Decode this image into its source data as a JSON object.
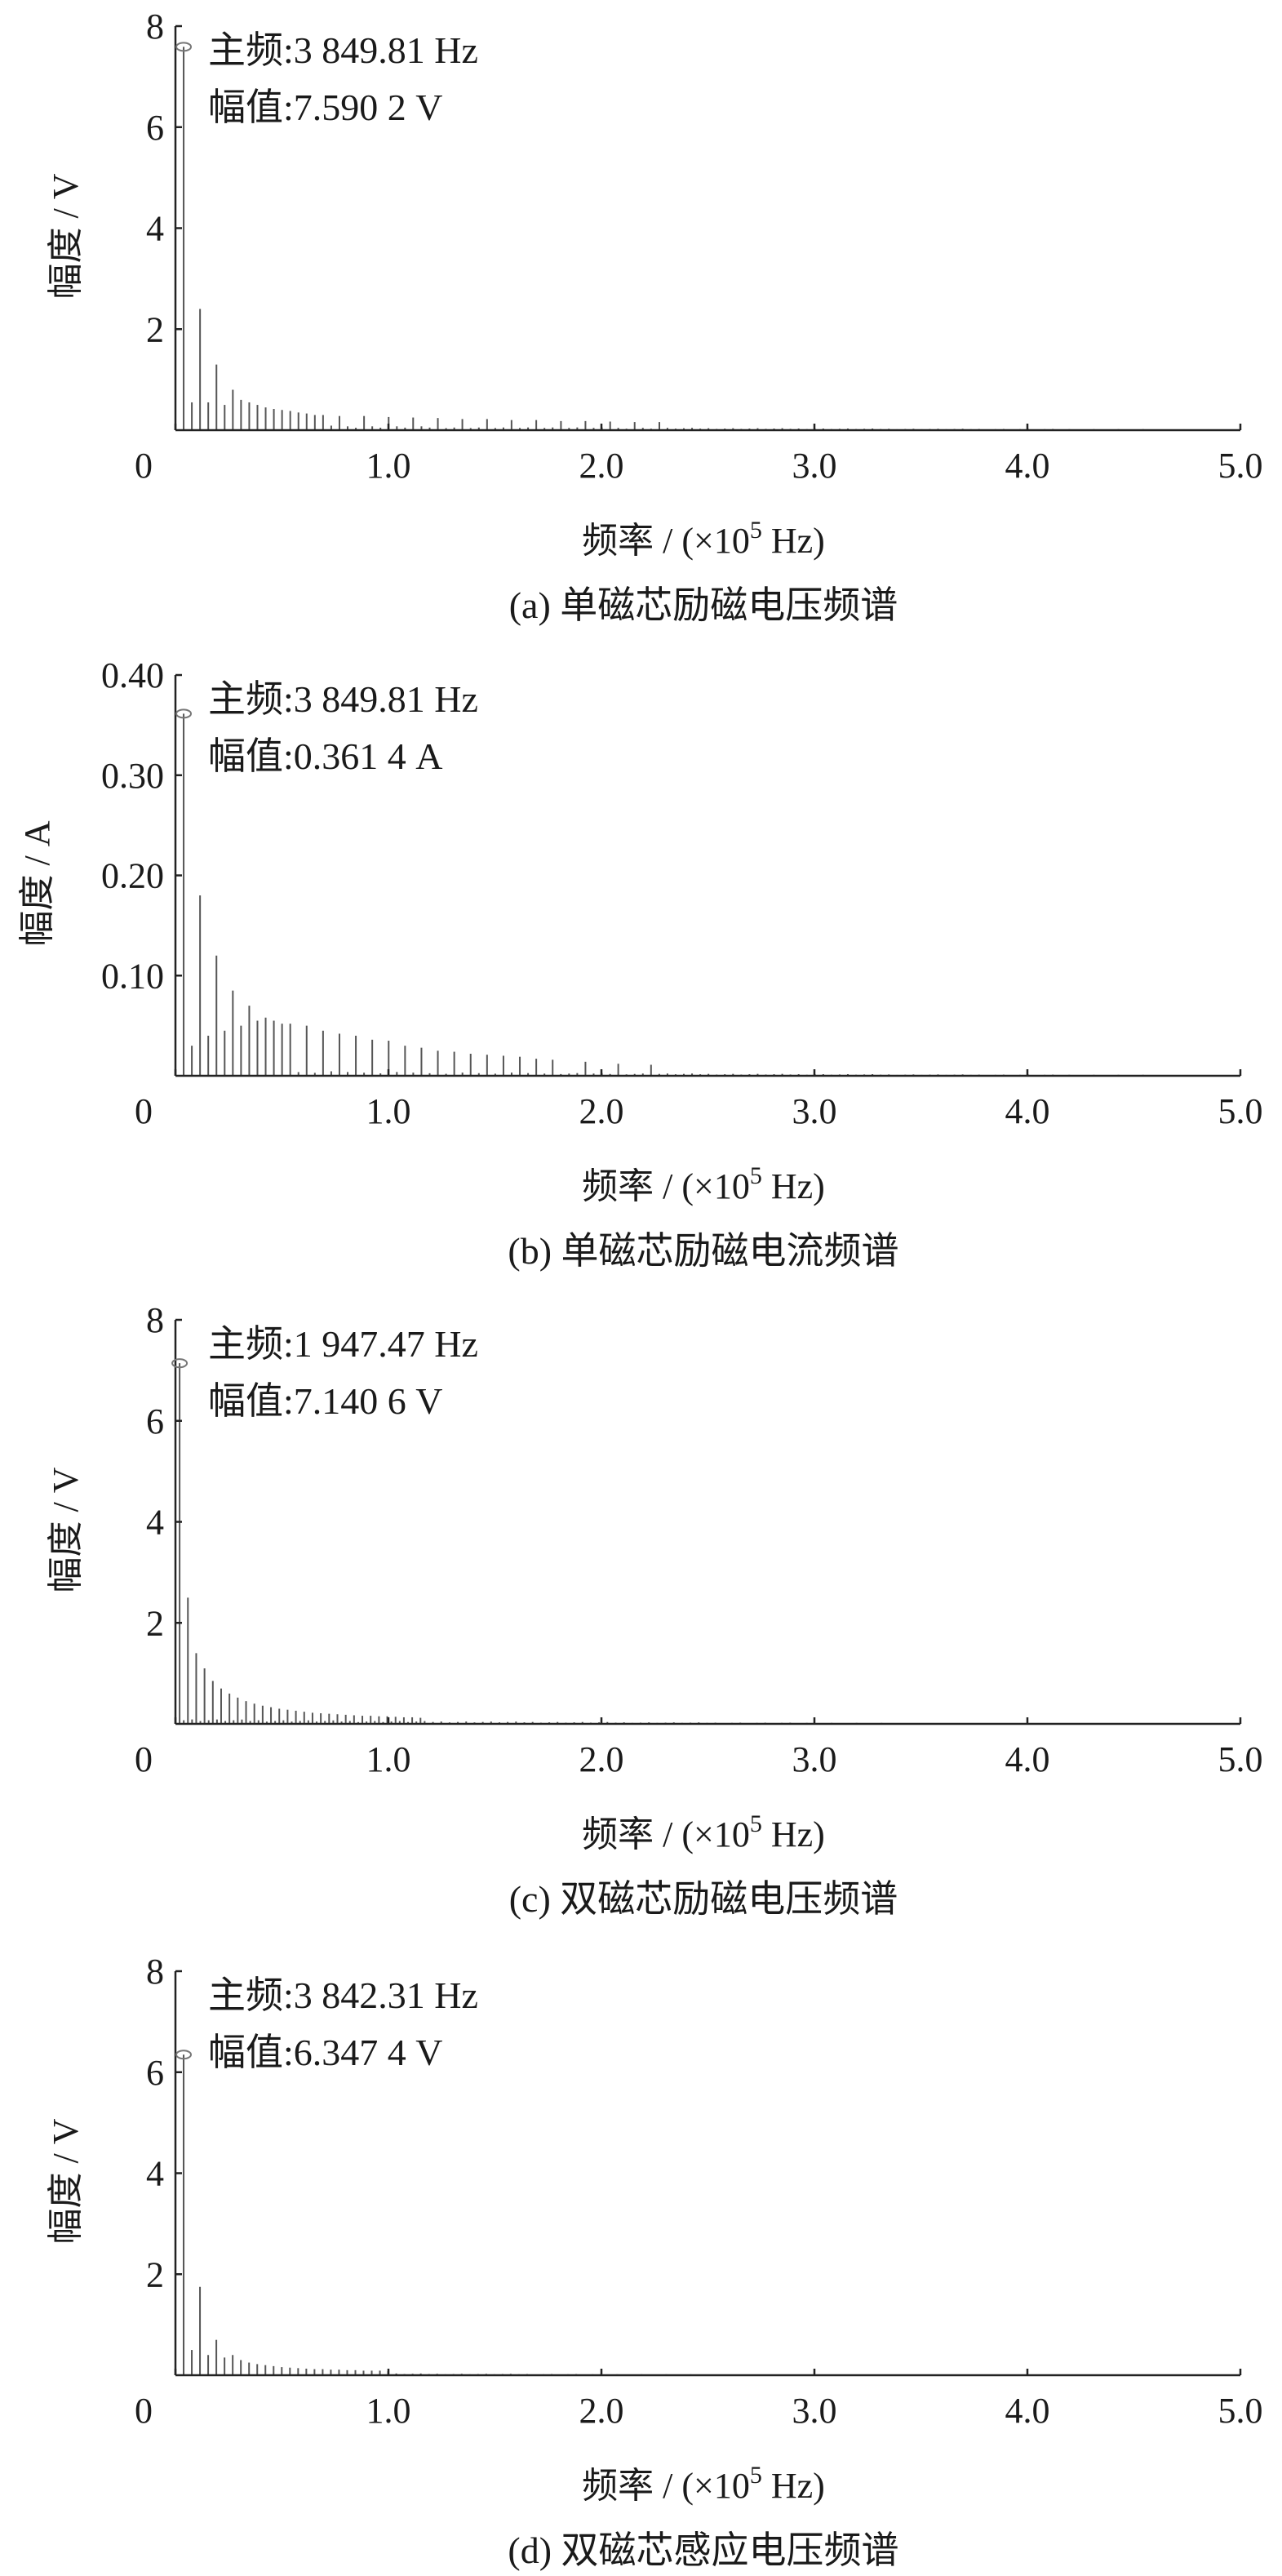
{
  "figure_type": "spectrum-panels",
  "chart_data": [
    {
      "id": "a",
      "type": "bar",
      "caption": "(a) 单磁芯励磁电压频谱",
      "xlabel_prefix": "频率 / (×10",
      "xlabel_exp": "5",
      "xlabel_suffix": " Hz)",
      "ylabel": "幅度 / V",
      "xlim": [
        0,
        5.0
      ],
      "ylim": [
        0,
        8
      ],
      "xticks": [
        "0",
        "1.0",
        "2.0",
        "3.0",
        "4.0",
        "5.0"
      ],
      "xtick_values": [
        0,
        1.0,
        2.0,
        3.0,
        4.0,
        5.0
      ],
      "yticks": [
        "2",
        "4",
        "6",
        "8"
      ],
      "ytick_values": [
        2,
        4,
        6,
        8
      ],
      "grid": false,
      "fundamental_x": 0.0385,
      "annotation_line1": "主频:3 849.81 Hz",
      "annotation_line2": "幅值:7.590 2 V",
      "peaks": [
        {
          "x": 0.0385,
          "y": 7.59
        },
        {
          "x": 0.077,
          "y": 0.55
        },
        {
          "x": 0.1155,
          "y": 2.4
        },
        {
          "x": 0.154,
          "y": 0.55
        },
        {
          "x": 0.1925,
          "y": 1.3
        },
        {
          "x": 0.231,
          "y": 0.5
        },
        {
          "x": 0.2695,
          "y": 0.8
        },
        {
          "x": 0.308,
          "y": 0.6
        },
        {
          "x": 0.3465,
          "y": 0.55
        },
        {
          "x": 0.385,
          "y": 0.5
        },
        {
          "x": 0.4235,
          "y": 0.45
        },
        {
          "x": 0.462,
          "y": 0.42
        },
        {
          "x": 0.5005,
          "y": 0.4
        },
        {
          "x": 0.539,
          "y": 0.38
        },
        {
          "x": 0.5775,
          "y": 0.35
        },
        {
          "x": 0.616,
          "y": 0.33
        },
        {
          "x": 0.6545,
          "y": 0.3
        },
        {
          "x": 0.693,
          "y": 0.3
        },
        {
          "x": 0.77,
          "y": 0.28
        },
        {
          "x": 0.8855,
          "y": 0.28
        },
        {
          "x": 1.001,
          "y": 0.26
        },
        {
          "x": 1.116,
          "y": 0.25
        },
        {
          "x": 1.232,
          "y": 0.24
        },
        {
          "x": 1.347,
          "y": 0.22
        },
        {
          "x": 1.463,
          "y": 0.22
        },
        {
          "x": 1.578,
          "y": 0.2
        },
        {
          "x": 1.694,
          "y": 0.2
        },
        {
          "x": 1.81,
          "y": 0.18
        },
        {
          "x": 1.925,
          "y": 0.18
        },
        {
          "x": 2.041,
          "y": 0.17
        },
        {
          "x": 2.156,
          "y": 0.16
        },
        {
          "x": 2.272,
          "y": 0.16
        }
      ],
      "floor": 0.12,
      "floor_spacing": 0.0385,
      "floor_decay": 2.5
    },
    {
      "id": "b",
      "type": "bar",
      "caption": "(b) 单磁芯励磁电流频谱",
      "xlabel_prefix": "频率 / (×10",
      "xlabel_exp": "5",
      "xlabel_suffix": " Hz)",
      "ylabel": "幅度 / A",
      "xlim": [
        0,
        5.0
      ],
      "ylim": [
        0,
        0.4
      ],
      "xticks": [
        "0",
        "1.0",
        "2.0",
        "3.0",
        "4.0",
        "5.0"
      ],
      "xtick_values": [
        0,
        1.0,
        2.0,
        3.0,
        4.0,
        5.0
      ],
      "yticks": [
        "0.10",
        "0.20",
        "0.30",
        "0.40"
      ],
      "ytick_values": [
        0.1,
        0.2,
        0.3,
        0.4
      ],
      "grid": false,
      "fundamental_x": 0.0385,
      "annotation_line1": "主频:3 849.81 Hz",
      "annotation_line2": "幅值:0.361 4 A",
      "peaks": [
        {
          "x": 0.0385,
          "y": 0.3614
        },
        {
          "x": 0.077,
          "y": 0.03
        },
        {
          "x": 0.1155,
          "y": 0.18
        },
        {
          "x": 0.154,
          "y": 0.04
        },
        {
          "x": 0.1925,
          "y": 0.12
        },
        {
          "x": 0.231,
          "y": 0.045
        },
        {
          "x": 0.2695,
          "y": 0.085
        },
        {
          "x": 0.308,
          "y": 0.05
        },
        {
          "x": 0.3465,
          "y": 0.07
        },
        {
          "x": 0.385,
          "y": 0.055
        },
        {
          "x": 0.4235,
          "y": 0.058
        },
        {
          "x": 0.462,
          "y": 0.055
        },
        {
          "x": 0.5005,
          "y": 0.052
        },
        {
          "x": 0.539,
          "y": 0.052
        },
        {
          "x": 0.616,
          "y": 0.05
        },
        {
          "x": 0.693,
          "y": 0.045
        },
        {
          "x": 0.77,
          "y": 0.042
        },
        {
          "x": 0.847,
          "y": 0.04
        },
        {
          "x": 0.924,
          "y": 0.036
        },
        {
          "x": 1.001,
          "y": 0.035
        },
        {
          "x": 1.078,
          "y": 0.03
        },
        {
          "x": 1.155,
          "y": 0.028
        },
        {
          "x": 1.232,
          "y": 0.025
        },
        {
          "x": 1.309,
          "y": 0.024
        },
        {
          "x": 1.386,
          "y": 0.022
        },
        {
          "x": 1.463,
          "y": 0.021
        },
        {
          "x": 1.54,
          "y": 0.02
        },
        {
          "x": 1.617,
          "y": 0.019
        },
        {
          "x": 1.694,
          "y": 0.017
        },
        {
          "x": 1.771,
          "y": 0.016
        },
        {
          "x": 1.925,
          "y": 0.014
        },
        {
          "x": 2.079,
          "y": 0.012
        },
        {
          "x": 2.233,
          "y": 0.011
        }
      ],
      "floor": 0.006,
      "floor_spacing": 0.0385,
      "floor_decay": 2.5
    },
    {
      "id": "c",
      "type": "bar",
      "caption": "(c) 双磁芯励磁电压频谱",
      "xlabel_prefix": "频率 / (×10",
      "xlabel_exp": "5",
      "xlabel_suffix": " Hz)",
      "ylabel": "幅度 / V",
      "xlim": [
        0,
        5.0
      ],
      "ylim": [
        0,
        8
      ],
      "xticks": [
        "0",
        "1.0",
        "2.0",
        "3.0",
        "4.0",
        "5.0"
      ],
      "xtick_values": [
        0,
        1.0,
        2.0,
        3.0,
        4.0,
        5.0
      ],
      "yticks": [
        "2",
        "4",
        "6",
        "8"
      ],
      "ytick_values": [
        2,
        4,
        6,
        8
      ],
      "grid": false,
      "fundamental_x": 0.0195,
      "annotation_line1": "主频:1 947.47 Hz",
      "annotation_line2": "幅值:7.140 6 V",
      "peaks": [
        {
          "x": 0.0195,
          "y": 7.1406
        },
        {
          "x": 0.0585,
          "y": 2.5
        },
        {
          "x": 0.0975,
          "y": 1.4
        },
        {
          "x": 0.1365,
          "y": 1.1
        },
        {
          "x": 0.1755,
          "y": 0.85
        },
        {
          "x": 0.2145,
          "y": 0.7
        },
        {
          "x": 0.2535,
          "y": 0.6
        },
        {
          "x": 0.2925,
          "y": 0.52
        },
        {
          "x": 0.3315,
          "y": 0.45
        },
        {
          "x": 0.3705,
          "y": 0.4
        },
        {
          "x": 0.4095,
          "y": 0.36
        },
        {
          "x": 0.4485,
          "y": 0.33
        },
        {
          "x": 0.4875,
          "y": 0.3
        },
        {
          "x": 0.5265,
          "y": 0.28
        },
        {
          "x": 0.5655,
          "y": 0.26
        },
        {
          "x": 0.6045,
          "y": 0.24
        },
        {
          "x": 0.6435,
          "y": 0.22
        },
        {
          "x": 0.6825,
          "y": 0.21
        },
        {
          "x": 0.7215,
          "y": 0.2
        },
        {
          "x": 0.7605,
          "y": 0.19
        },
        {
          "x": 0.7995,
          "y": 0.18
        },
        {
          "x": 0.8385,
          "y": 0.17
        },
        {
          "x": 0.8775,
          "y": 0.16
        },
        {
          "x": 0.9165,
          "y": 0.16
        },
        {
          "x": 0.9555,
          "y": 0.15
        },
        {
          "x": 0.9945,
          "y": 0.15
        },
        {
          "x": 1.0335,
          "y": 0.14
        },
        {
          "x": 1.0725,
          "y": 0.13
        },
        {
          "x": 1.1115,
          "y": 0.13
        },
        {
          "x": 1.1505,
          "y": 0.12
        }
      ],
      "floor": 0.1,
      "floor_spacing": 0.039,
      "floor_decay": 2.0
    },
    {
      "id": "d",
      "type": "bar",
      "caption": "(d) 双磁芯感应电压频谱",
      "xlabel_prefix": "频率 / (×10",
      "xlabel_exp": "5",
      "xlabel_suffix": " Hz)",
      "ylabel": "幅度 / V",
      "xlim": [
        0,
        5.0
      ],
      "ylim": [
        0,
        8
      ],
      "xticks": [
        "0",
        "1.0",
        "2.0",
        "3.0",
        "4.0",
        "5.0"
      ],
      "xtick_values": [
        0,
        1.0,
        2.0,
        3.0,
        4.0,
        5.0
      ],
      "yticks": [
        "2",
        "4",
        "6",
        "8"
      ],
      "ytick_values": [
        2,
        4,
        6,
        8
      ],
      "grid": false,
      "fundamental_x": 0.0384,
      "annotation_line1": "主频:3 842.31 Hz",
      "annotation_line2": "幅值:6.347 4 V",
      "peaks": [
        {
          "x": 0.0384,
          "y": 6.3474
        },
        {
          "x": 0.0768,
          "y": 0.5
        },
        {
          "x": 0.1152,
          "y": 1.75
        },
        {
          "x": 0.1536,
          "y": 0.4
        },
        {
          "x": 0.192,
          "y": 0.7
        },
        {
          "x": 0.2304,
          "y": 0.35
        },
        {
          "x": 0.2688,
          "y": 0.4
        },
        {
          "x": 0.3072,
          "y": 0.3
        },
        {
          "x": 0.3456,
          "y": 0.25
        },
        {
          "x": 0.384,
          "y": 0.22
        },
        {
          "x": 0.4224,
          "y": 0.2
        },
        {
          "x": 0.4608,
          "y": 0.18
        },
        {
          "x": 0.4992,
          "y": 0.16
        },
        {
          "x": 0.5376,
          "y": 0.15
        },
        {
          "x": 0.576,
          "y": 0.14
        },
        {
          "x": 0.6144,
          "y": 0.13
        },
        {
          "x": 0.6528,
          "y": 0.12
        },
        {
          "x": 0.6912,
          "y": 0.12
        },
        {
          "x": 0.7296,
          "y": 0.11
        },
        {
          "x": 0.768,
          "y": 0.11
        },
        {
          "x": 0.8064,
          "y": 0.1
        },
        {
          "x": 0.8448,
          "y": 0.1
        },
        {
          "x": 0.8832,
          "y": 0.09
        },
        {
          "x": 0.9216,
          "y": 0.09
        },
        {
          "x": 0.96,
          "y": 0.09
        },
        {
          "x": 0.9984,
          "y": 0.08
        }
      ],
      "floor": 0.06,
      "floor_spacing": 0.0384,
      "floor_decay": 2.0
    }
  ]
}
